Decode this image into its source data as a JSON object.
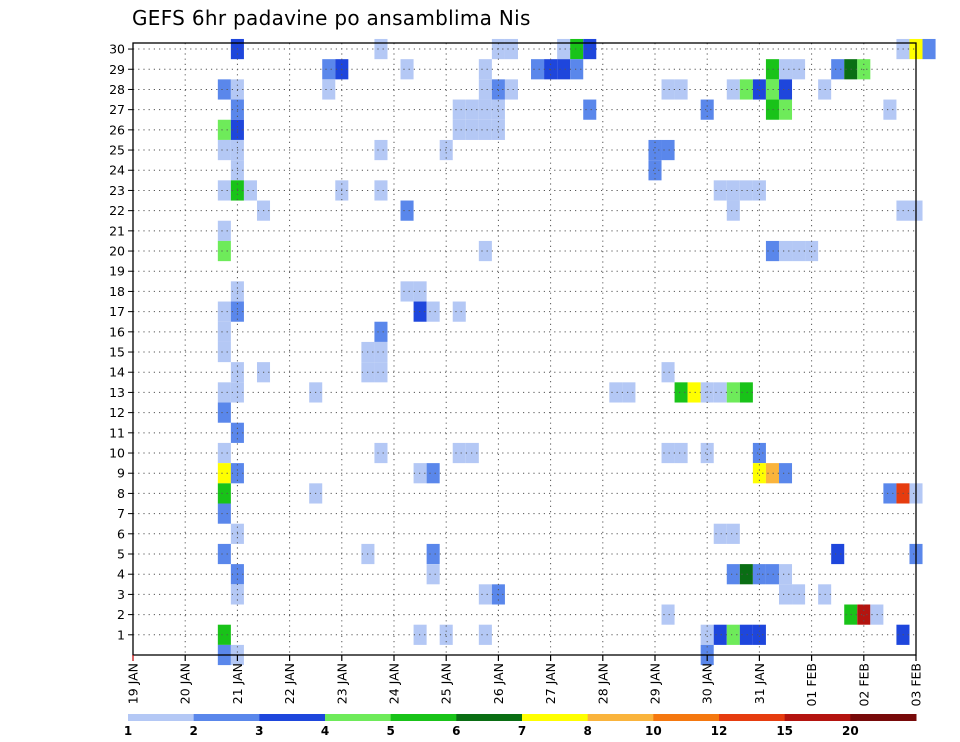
{
  "title": "GEFS 6hr padavine po ansamblima Nis",
  "chart_data": {
    "type": "heatmap",
    "title": "GEFS 6hr padavine po ansamblima Nis",
    "x_tick_labels": [
      "19 JAN",
      "20 JAN",
      "21 JAN",
      "22 JAN",
      "23 JAN",
      "24 JAN",
      "25 JAN",
      "26 JAN",
      "27 JAN",
      "28 JAN",
      "29 JAN",
      "30 JAN",
      "31 JAN",
      "01 FEB",
      "02 FEB",
      "03 FEB"
    ],
    "y_tick_labels": [
      "1",
      "2",
      "3",
      "4",
      "5",
      "6",
      "7",
      "8",
      "9",
      "10",
      "11",
      "12",
      "13",
      "14",
      "15",
      "16",
      "17",
      "18",
      "19",
      "20",
      "21",
      "22",
      "23",
      "24",
      "25",
      "26",
      "27",
      "28",
      "29",
      "30"
    ],
    "x_range_days": [
      0,
      15
    ],
    "y_range": [
      0,
      30
    ],
    "time_step_hours": 6,
    "grid": "dotted",
    "colorbar": {
      "levels": [
        "1",
        "2",
        "3",
        "4",
        "5",
        "6",
        "7",
        "8",
        "10",
        "12",
        "15",
        "20"
      ],
      "colors": [
        "#b4c8f5",
        "#5a87eb",
        "#1e46dc",
        "#6eeb5a",
        "#19c319",
        "#0a6e14",
        "#ffff00",
        "#fab43c",
        "#f5780f",
        "#e63c0f",
        "#b4140f",
        "#780a0a"
      ]
    },
    "cells": [
      {
        "member": 30,
        "col": 8,
        "level": 3
      },
      {
        "member": 30,
        "col": 19,
        "level": 1
      },
      {
        "member": 30,
        "col": 28,
        "level": 1
      },
      {
        "member": 30,
        "col": 29,
        "level": 1
      },
      {
        "member": 30,
        "col": 33,
        "level": 1
      },
      {
        "member": 30,
        "col": 34,
        "level": 5
      },
      {
        "member": 30,
        "col": 35,
        "level": 3
      },
      {
        "member": 30,
        "col": 59,
        "level": 1
      },
      {
        "member": 30,
        "col": 60,
        "level": 7
      },
      {
        "member": 30,
        "col": 61,
        "level": 2
      },
      {
        "member": 29,
        "col": 15,
        "level": 2
      },
      {
        "member": 29,
        "col": 16,
        "level": 3
      },
      {
        "member": 29,
        "col": 21,
        "level": 1
      },
      {
        "member": 29,
        "col": 27,
        "level": 1
      },
      {
        "member": 29,
        "col": 31,
        "level": 2
      },
      {
        "member": 29,
        "col": 32,
        "level": 3
      },
      {
        "member": 29,
        "col": 33,
        "level": 3
      },
      {
        "member": 29,
        "col": 34,
        "level": 2
      },
      {
        "member": 29,
        "col": 49,
        "level": 5
      },
      {
        "member": 29,
        "col": 50,
        "level": 1
      },
      {
        "member": 29,
        "col": 51,
        "level": 1
      },
      {
        "member": 29,
        "col": 54,
        "level": 2
      },
      {
        "member": 29,
        "col": 55,
        "level": 6
      },
      {
        "member": 29,
        "col": 56,
        "level": 4
      },
      {
        "member": 28,
        "col": 7,
        "level": 2
      },
      {
        "member": 28,
        "col": 8,
        "level": 1
      },
      {
        "member": 28,
        "col": 15,
        "level": 1
      },
      {
        "member": 28,
        "col": 27,
        "level": 1
      },
      {
        "member": 28,
        "col": 28,
        "level": 2
      },
      {
        "member": 28,
        "col": 29,
        "level": 1
      },
      {
        "member": 28,
        "col": 41,
        "level": 1
      },
      {
        "member": 28,
        "col": 42,
        "level": 1
      },
      {
        "member": 28,
        "col": 46,
        "level": 1
      },
      {
        "member": 28,
        "col": 47,
        "level": 4
      },
      {
        "member": 28,
        "col": 48,
        "level": 3
      },
      {
        "member": 28,
        "col": 49,
        "level": 4
      },
      {
        "member": 28,
        "col": 50,
        "level": 3
      },
      {
        "member": 28,
        "col": 53,
        "level": 1
      },
      {
        "member": 27,
        "col": 8,
        "level": 2
      },
      {
        "member": 27,
        "col": 25,
        "level": 1
      },
      {
        "member": 27,
        "col": 26,
        "level": 1
      },
      {
        "member": 27,
        "col": 27,
        "level": 1
      },
      {
        "member": 27,
        "col": 28,
        "level": 1
      },
      {
        "member": 27,
        "col": 35,
        "level": 2
      },
      {
        "member": 27,
        "col": 44,
        "level": 2
      },
      {
        "member": 27,
        "col": 49,
        "level": 5
      },
      {
        "member": 27,
        "col": 50,
        "level": 4
      },
      {
        "member": 27,
        "col": 58,
        "level": 1
      },
      {
        "member": 26,
        "col": 7,
        "level": 4
      },
      {
        "member": 26,
        "col": 8,
        "level": 3
      },
      {
        "member": 26,
        "col": 25,
        "level": 1
      },
      {
        "member": 26,
        "col": 26,
        "level": 1
      },
      {
        "member": 26,
        "col": 27,
        "level": 1
      },
      {
        "member": 26,
        "col": 28,
        "level": 1
      },
      {
        "member": 25,
        "col": 7,
        "level": 1
      },
      {
        "member": 25,
        "col": 8,
        "level": 1
      },
      {
        "member": 25,
        "col": 19,
        "level": 1
      },
      {
        "member": 25,
        "col": 24,
        "level": 1
      },
      {
        "member": 25,
        "col": 40,
        "level": 2
      },
      {
        "member": 25,
        "col": 41,
        "level": 2
      },
      {
        "member": 24,
        "col": 8,
        "level": 1
      },
      {
        "member": 24,
        "col": 40,
        "level": 2
      },
      {
        "member": 23,
        "col": 7,
        "level": 1
      },
      {
        "member": 23,
        "col": 8,
        "level": 5
      },
      {
        "member": 23,
        "col": 9,
        "level": 1
      },
      {
        "member": 23,
        "col": 16,
        "level": 1
      },
      {
        "member": 23,
        "col": 19,
        "level": 1
      },
      {
        "member": 23,
        "col": 45,
        "level": 1
      },
      {
        "member": 23,
        "col": 46,
        "level": 1
      },
      {
        "member": 23,
        "col": 47,
        "level": 1
      },
      {
        "member": 23,
        "col": 48,
        "level": 1
      },
      {
        "member": 22,
        "col": 10,
        "level": 1
      },
      {
        "member": 22,
        "col": 21,
        "level": 2
      },
      {
        "member": 22,
        "col": 46,
        "level": 1
      },
      {
        "member": 22,
        "col": 59,
        "level": 1
      },
      {
        "member": 22,
        "col": 60,
        "level": 1
      },
      {
        "member": 21,
        "col": 7,
        "level": 1
      },
      {
        "member": 20,
        "col": 7,
        "level": 4
      },
      {
        "member": 20,
        "col": 27,
        "level": 1
      },
      {
        "member": 20,
        "col": 49,
        "level": 2
      },
      {
        "member": 20,
        "col": 50,
        "level": 1
      },
      {
        "member": 20,
        "col": 51,
        "level": 1
      },
      {
        "member": 20,
        "col": 52,
        "level": 1
      },
      {
        "member": 18,
        "col": 8,
        "level": 1
      },
      {
        "member": 18,
        "col": 21,
        "level": 1
      },
      {
        "member": 18,
        "col": 22,
        "level": 1
      },
      {
        "member": 17,
        "col": 7,
        "level": 1
      },
      {
        "member": 17,
        "col": 8,
        "level": 2
      },
      {
        "member": 17,
        "col": 22,
        "level": 3
      },
      {
        "member": 17,
        "col": 23,
        "level": 1
      },
      {
        "member": 17,
        "col": 25,
        "level": 1
      },
      {
        "member": 16,
        "col": 7,
        "level": 1
      },
      {
        "member": 16,
        "col": 19,
        "level": 2
      },
      {
        "member": 15,
        "col": 7,
        "level": 1
      },
      {
        "member": 15,
        "col": 18,
        "level": 1
      },
      {
        "member": 15,
        "col": 19,
        "level": 1
      },
      {
        "member": 14,
        "col": 8,
        "level": 1
      },
      {
        "member": 14,
        "col": 10,
        "level": 1
      },
      {
        "member": 14,
        "col": 18,
        "level": 1
      },
      {
        "member": 14,
        "col": 19,
        "level": 1
      },
      {
        "member": 14,
        "col": 41,
        "level": 1
      },
      {
        "member": 13,
        "col": 7,
        "level": 1
      },
      {
        "member": 13,
        "col": 8,
        "level": 1
      },
      {
        "member": 13,
        "col": 14,
        "level": 1
      },
      {
        "member": 13,
        "col": 37,
        "level": 1
      },
      {
        "member": 13,
        "col": 38,
        "level": 1
      },
      {
        "member": 13,
        "col": 42,
        "level": 5
      },
      {
        "member": 13,
        "col": 43,
        "level": 7
      },
      {
        "member": 13,
        "col": 44,
        "level": 1
      },
      {
        "member": 13,
        "col": 45,
        "level": 1
      },
      {
        "member": 13,
        "col": 46,
        "level": 4
      },
      {
        "member": 13,
        "col": 47,
        "level": 5
      },
      {
        "member": 12,
        "col": 7,
        "level": 2
      },
      {
        "member": 11,
        "col": 8,
        "level": 2
      },
      {
        "member": 10,
        "col": 7,
        "level": 1
      },
      {
        "member": 10,
        "col": 19,
        "level": 1
      },
      {
        "member": 10,
        "col": 25,
        "level": 1
      },
      {
        "member": 10,
        "col": 26,
        "level": 1
      },
      {
        "member": 10,
        "col": 41,
        "level": 1
      },
      {
        "member": 10,
        "col": 42,
        "level": 1
      },
      {
        "member": 10,
        "col": 44,
        "level": 1
      },
      {
        "member": 10,
        "col": 48,
        "level": 2
      },
      {
        "member": 9,
        "col": 7,
        "level": 7
      },
      {
        "member": 9,
        "col": 8,
        "level": 2
      },
      {
        "member": 9,
        "col": 22,
        "level": 1
      },
      {
        "member": 9,
        "col": 23,
        "level": 2
      },
      {
        "member": 9,
        "col": 48,
        "level": 7
      },
      {
        "member": 9,
        "col": 49,
        "level": 8
      },
      {
        "member": 9,
        "col": 50,
        "level": 2
      },
      {
        "member": 8,
        "col": 7,
        "level": 5
      },
      {
        "member": 8,
        "col": 14,
        "level": 1
      },
      {
        "member": 8,
        "col": 58,
        "level": 2
      },
      {
        "member": 8,
        "col": 59,
        "level": 10
      },
      {
        "member": 8,
        "col": 60,
        "level": 1
      },
      {
        "member": 7,
        "col": 7,
        "level": 2
      },
      {
        "member": 6,
        "col": 8,
        "level": 1
      },
      {
        "member": 6,
        "col": 45,
        "level": 1
      },
      {
        "member": 6,
        "col": 46,
        "level": 1
      },
      {
        "member": 5,
        "col": 7,
        "level": 2
      },
      {
        "member": 5,
        "col": 18,
        "level": 1
      },
      {
        "member": 5,
        "col": 23,
        "level": 2
      },
      {
        "member": 5,
        "col": 54,
        "level": 3
      },
      {
        "member": 5,
        "col": 60,
        "level": 2
      },
      {
        "member": 4,
        "col": 8,
        "level": 2
      },
      {
        "member": 4,
        "col": 23,
        "level": 1
      },
      {
        "member": 4,
        "col": 46,
        "level": 2
      },
      {
        "member": 4,
        "col": 47,
        "level": 6
      },
      {
        "member": 4,
        "col": 48,
        "level": 2
      },
      {
        "member": 4,
        "col": 49,
        "level": 2
      },
      {
        "member": 4,
        "col": 50,
        "level": 1
      },
      {
        "member": 3,
        "col": 8,
        "level": 1
      },
      {
        "member": 3,
        "col": 27,
        "level": 1
      },
      {
        "member": 3,
        "col": 28,
        "level": 2
      },
      {
        "member": 3,
        "col": 50,
        "level": 1
      },
      {
        "member": 3,
        "col": 51,
        "level": 1
      },
      {
        "member": 3,
        "col": 53,
        "level": 1
      },
      {
        "member": 2,
        "col": 41,
        "level": 1
      },
      {
        "member": 2,
        "col": 55,
        "level": 5
      },
      {
        "member": 2,
        "col": 56,
        "level": 11
      },
      {
        "member": 2,
        "col": 57,
        "level": 1
      },
      {
        "member": 1,
        "col": 7,
        "level": 5
      },
      {
        "member": 1,
        "col": 22,
        "level": 1
      },
      {
        "member": 1,
        "col": 24,
        "level": 1
      },
      {
        "member": 1,
        "col": 27,
        "level": 1
      },
      {
        "member": 1,
        "col": 44,
        "level": 1
      },
      {
        "member": 1,
        "col": 45,
        "level": 3
      },
      {
        "member": 1,
        "col": 46,
        "level": 4
      },
      {
        "member": 1,
        "col": 47,
        "level": 3
      },
      {
        "member": 1,
        "col": 48,
        "level": 3
      },
      {
        "member": 1,
        "col": 59,
        "level": 3
      },
      {
        "member": 0,
        "col": 7,
        "level": 2
      },
      {
        "member": 0,
        "col": 8,
        "level": 1
      },
      {
        "member": 0,
        "col": 44,
        "level": 2
      }
    ]
  }
}
